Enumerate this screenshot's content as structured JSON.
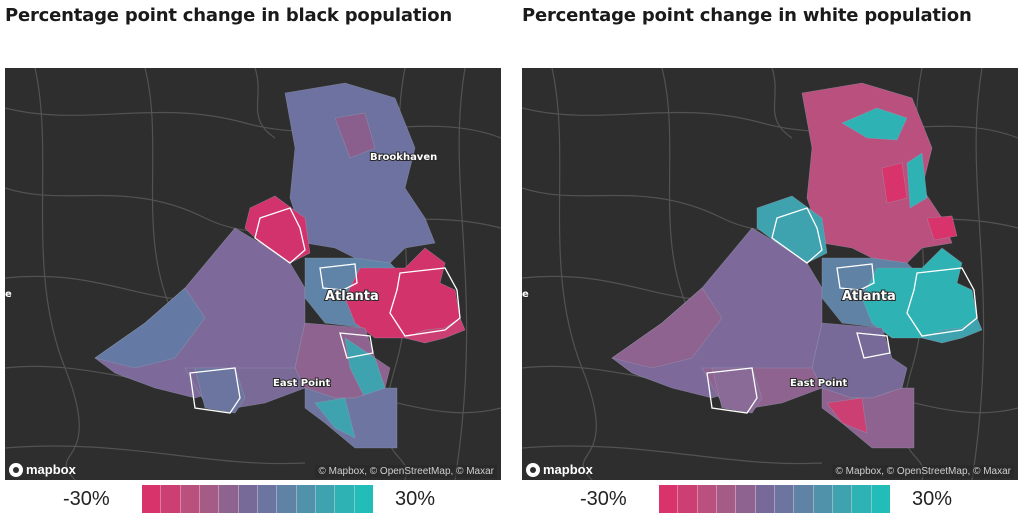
{
  "panels": [
    {
      "id": "black",
      "title": "Percentage point change in black population",
      "labels": {
        "city": "Atlanta",
        "north": "Brookhaven",
        "south": "East Point",
        "edge": "e"
      },
      "attribution": "© Mapbox, © OpenStreetMap, © Maxar",
      "logo": "mapbox",
      "legend": {
        "min_label": "-30%",
        "max_label": "30%"
      }
    },
    {
      "id": "white",
      "title": "Percentage point change in white population",
      "labels": {
        "city": "Atlanta",
        "north": "",
        "south": "East Point",
        "edge": "e"
      },
      "attribution": "© Mapbox, © OpenStreetMap, © Maxar",
      "logo": "mapbox",
      "legend": {
        "min_label": "-30%",
        "max_label": "30%"
      }
    }
  ],
  "colors": {
    "ramp": [
      "#d8336a",
      "#cc3f73",
      "#b9507d",
      "#a45c86",
      "#8e6390",
      "#786a98",
      "#6b759f",
      "#5f82a5",
      "#4f92aa",
      "#3ea3af",
      "#2fb2b4",
      "#22bdb9"
    ],
    "basemap": "#2e2e2e",
    "roads": "#5a5a5a",
    "outline": "#ffffff"
  }
}
